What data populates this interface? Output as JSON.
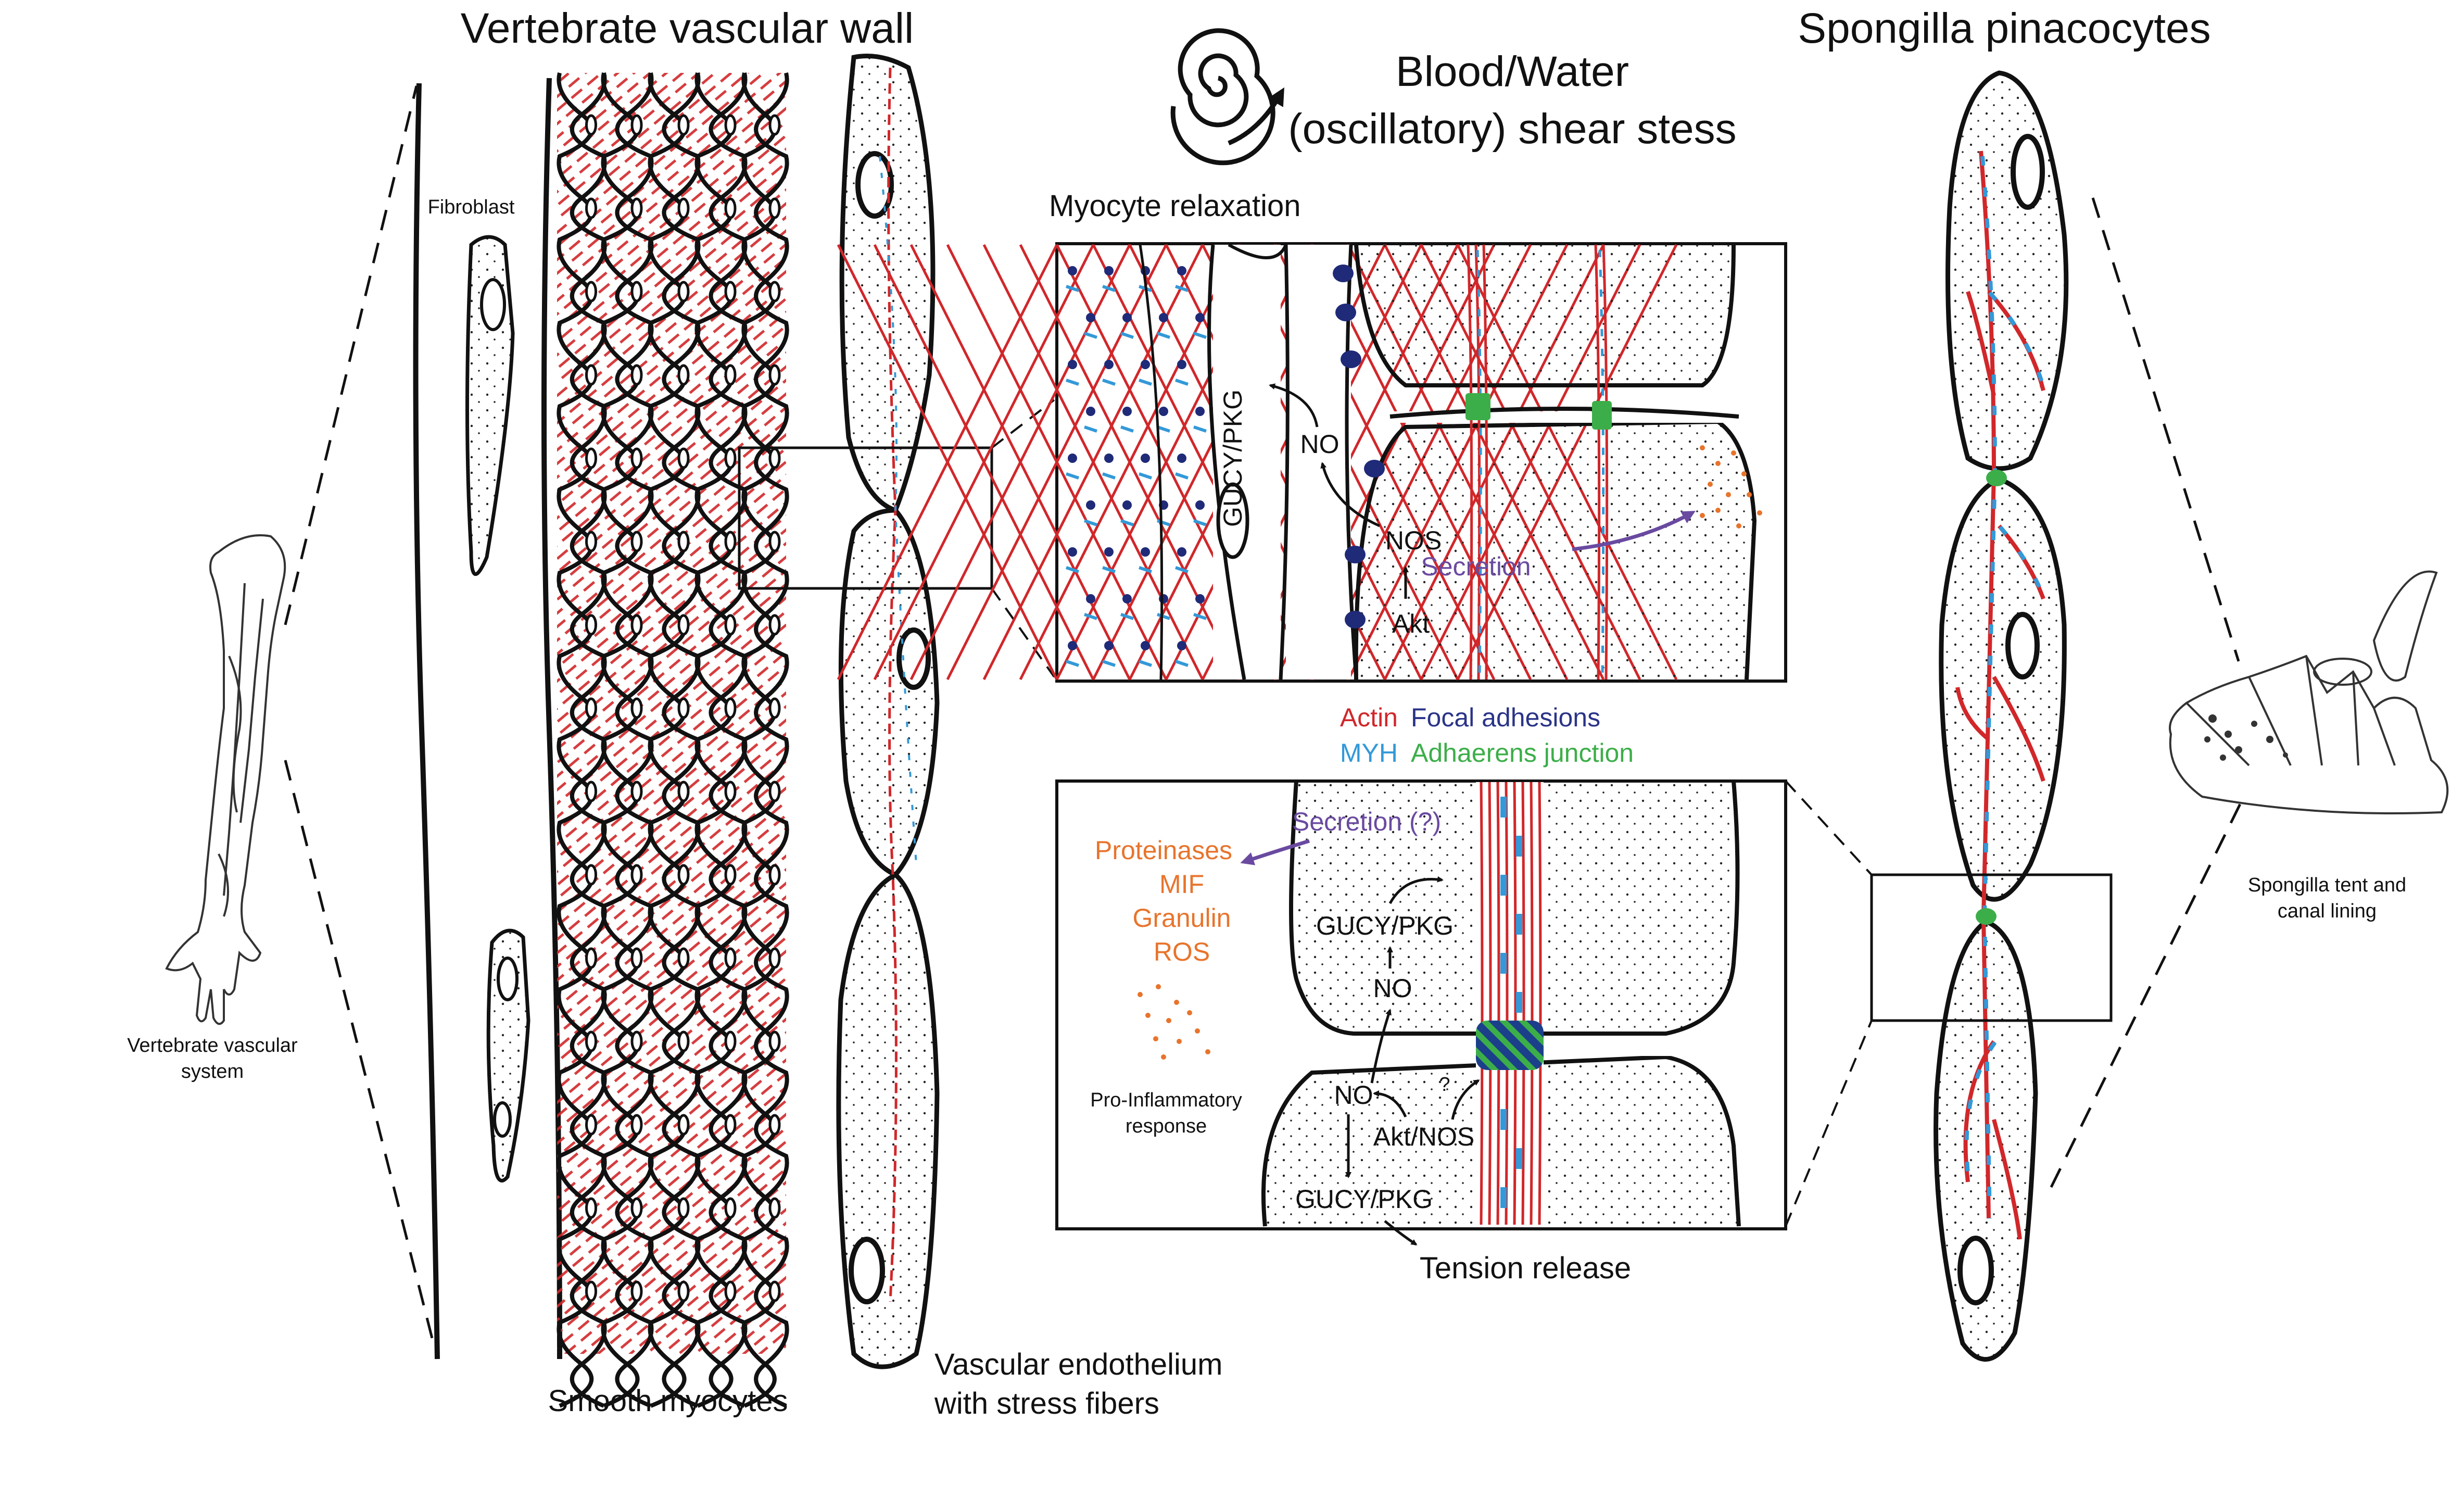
{
  "titles": {
    "vascular_wall": "Vertebrate vascular wall",
    "spongilla": "Spongilla pinacocytes",
    "shear_line1": "Blood/Water",
    "shear_line2": "(oscillatory) shear stess"
  },
  "labels": {
    "fibroblast": "Fibroblast",
    "smooth_myocytes": "Smooth myocytes",
    "endothelium_line1": "Vascular endothelium",
    "endothelium_line2": "with stress fibers",
    "vascular_system_line1": "Vertebrate vascular",
    "vascular_system_line2": "system",
    "spongilla_tent_line1": "Spongilla tent and",
    "spongilla_tent_line2": "canal lining",
    "myocyte_relaxation": "Myocyte relaxation",
    "tension_release": "Tension release"
  },
  "top_inset": {
    "gucy_pkg": "GUCY/PKG",
    "no": "NO",
    "nos": "NOS",
    "akt": "Akt",
    "secretion": "Secretion"
  },
  "legend": {
    "actin": "Actin",
    "focal_adhesions": "Focal adhesions",
    "myh": "MYH",
    "adhaerens_junction": "Adhaerens junction"
  },
  "bottom_inset": {
    "secretion": "Secretion (?)",
    "proteinases": "Proteinases",
    "mif": "MIF",
    "granulin": "Granulin",
    "ros": "ROS",
    "pro_inflammatory_line1": "Pro-Inflammatory",
    "pro_inflammatory_line2": "response",
    "gucy_pkg_upper": "GUCY/PKG",
    "no_upper": "NO",
    "no_lower": "NO",
    "akt_nos": "Akt/NOS",
    "question": "?",
    "gucy_pkg_lower": "GUCY/PKG"
  },
  "colors": {
    "actin": "#d1272a",
    "focal_adhesions": "#2a3488",
    "myh": "#3399d8",
    "adhaerens_junction": "#3cae49",
    "secreted_factors": "#e8742c",
    "secretion_arrow": "#6a4aa0"
  }
}
